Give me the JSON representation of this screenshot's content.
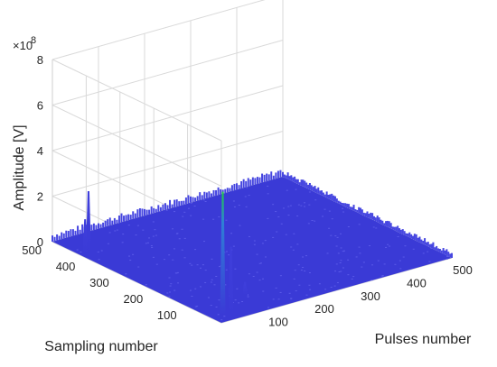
{
  "chart_data": {
    "type": "surface3d",
    "title": "",
    "xlabel": "Pulses number",
    "ylabel": "Sampling number",
    "zlabel": "Amplitude [V]",
    "z_exponent_label": "×10",
    "z_exponent_power": "8",
    "x_ticks": [
      "100",
      "200",
      "300",
      "400",
      "500"
    ],
    "y_ticks": [
      "100",
      "200",
      "300",
      "400",
      "500"
    ],
    "z_ticks": [
      "0",
      "2",
      "4",
      "6",
      "8"
    ],
    "xlim": [
      0,
      500
    ],
    "ylim": [
      0,
      500
    ],
    "zlim": [
      0,
      8
    ],
    "grid": true,
    "colormap_low": "#3a3ad6",
    "colormap_high": "#22c84a",
    "peaks": [
      {
        "pulses": 5,
        "sampling": 400,
        "amplitude": 2.9
      },
      {
        "pulses": 5,
        "sampling": 410,
        "amplitude": 1.6
      },
      {
        "pulses": 25,
        "sampling": 30,
        "amplitude": 5.4
      },
      {
        "pulses": 28,
        "sampling": 10,
        "amplitude": 3.1
      },
      {
        "pulses": 110,
        "sampling": 80,
        "amplitude": 0.6
      }
    ]
  }
}
